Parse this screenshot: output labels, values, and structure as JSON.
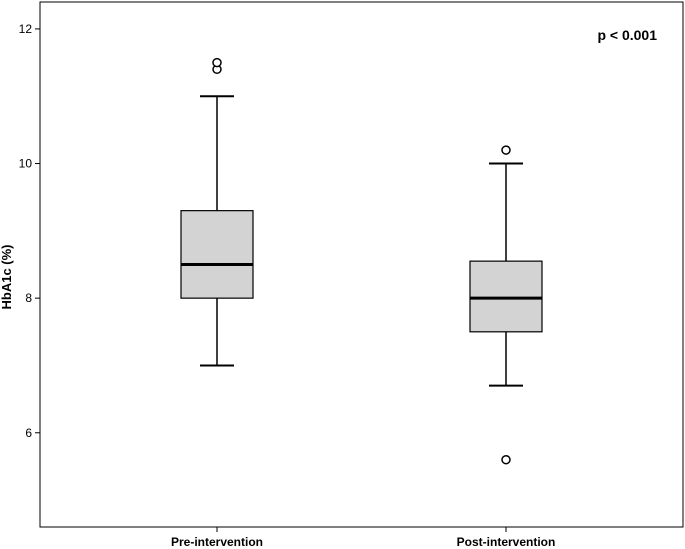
{
  "chart_data": {
    "type": "boxplot",
    "ylabel": "HbA1c (%)",
    "xlabel": "",
    "ylim": [
      4.6,
      12.4
    ],
    "yticks": [
      6,
      8,
      10,
      12
    ],
    "grid": false,
    "annotation": "p < 0.001",
    "annotation_position": "top-right",
    "box_color": "#d3d3d3",
    "categories": [
      "Pre-intervention",
      "Post-intervention"
    ],
    "boxes": [
      {
        "min": 7.0,
        "q1": 8.0,
        "median": 8.5,
        "q3": 9.3,
        "max": 11.0,
        "outliers": [
          11.4,
          11.5
        ]
      },
      {
        "min": 6.7,
        "q1": 7.5,
        "median": 8.0,
        "q3": 8.55,
        "max": 10.0,
        "outliers": [
          10.2,
          5.6
        ]
      }
    ]
  }
}
